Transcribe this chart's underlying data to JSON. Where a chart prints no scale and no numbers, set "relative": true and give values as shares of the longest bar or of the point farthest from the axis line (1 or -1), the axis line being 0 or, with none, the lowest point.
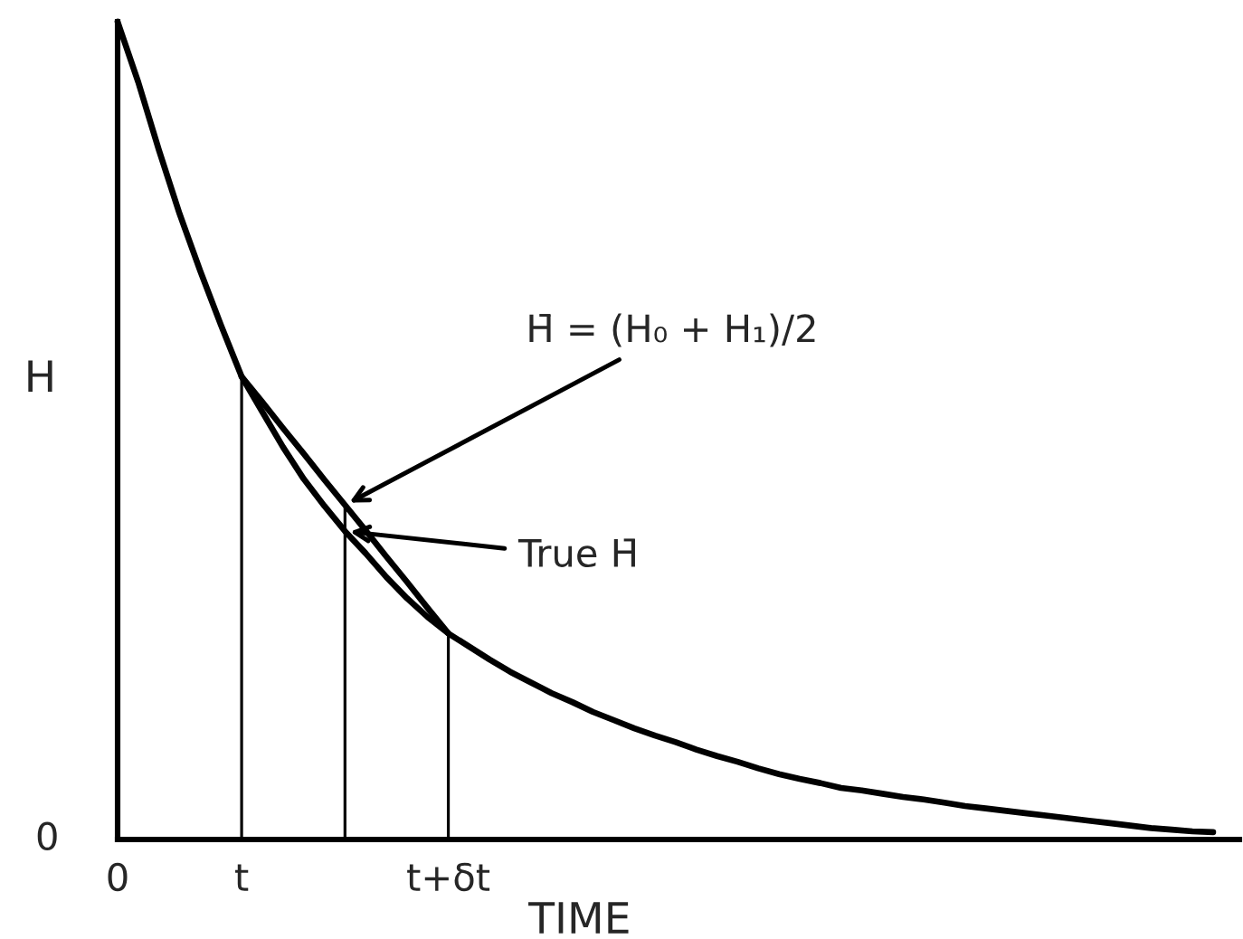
{
  "chart_data": {
    "type": "line",
    "relative": true,
    "xlabel": "TIME",
    "ylabel": "H",
    "categories": [
      "0",
      null,
      null,
      null,
      null,
      null,
      "t",
      null,
      null,
      null,
      null,
      null,
      null,
      null,
      null,
      null,
      "t+δt",
      null,
      null,
      null,
      null,
      null,
      null,
      null,
      null,
      null,
      null,
      null,
      null,
      null,
      null,
      null,
      null,
      null,
      null,
      null,
      null,
      null,
      null,
      null,
      null,
      null,
      null,
      null,
      null,
      null,
      null,
      null,
      null,
      null,
      null,
      null,
      null,
      null
    ],
    "series": [
      {
        "color": "#000000",
        "values": [
          1.0,
          0.926,
          0.843,
          0.765,
          0.695,
          0.629,
          0.566,
          0.523,
          0.48,
          0.441,
          0.408,
          0.377,
          0.35,
          0.321,
          0.295,
          0.272,
          0.252,
          0.236,
          0.22,
          0.205,
          0.192,
          0.179,
          0.168,
          0.156,
          0.146,
          0.136,
          0.127,
          0.119,
          0.11,
          0.102,
          0.095,
          0.087,
          0.08,
          0.074,
          0.069,
          0.063,
          0.06,
          0.056,
          0.052,
          0.049,
          0.045,
          0.041,
          0.038,
          0.035,
          0.032,
          0.029,
          0.026,
          0.023,
          0.02,
          0.017,
          0.014,
          0.012,
          0.01,
          0.009
        ]
      },
      {
        "color": "#000000",
        "values": [
          null,
          null,
          null,
          null,
          null,
          null,
          0.566,
          0.535,
          0.503,
          0.472,
          0.44,
          0.409,
          0.378,
          0.346,
          0.315,
          0.283,
          0.252,
          null,
          null,
          null,
          null,
          null,
          null,
          null,
          null,
          null,
          null,
          null,
          null,
          null,
          null,
          null,
          null,
          null,
          null,
          null,
          null,
          null,
          null,
          null,
          null,
          null,
          null,
          null,
          null,
          null,
          null,
          null,
          null,
          null,
          null,
          null,
          null,
          null
        ]
      },
      {
        "type": "bar",
        "color": "#000000",
        "values": [
          null,
          null,
          null,
          null,
          null,
          null,
          0.566,
          null,
          null,
          null,
          null,
          0.409,
          null,
          null,
          null,
          null,
          0.252,
          null,
          null,
          null,
          null,
          null,
          null,
          null,
          null,
          null,
          null,
          null,
          null,
          null,
          null,
          null,
          null,
          null,
          null,
          null,
          null,
          null,
          null,
          null,
          null,
          null,
          null,
          null,
          null,
          null,
          null,
          null,
          null,
          null,
          null,
          null,
          null,
          null
        ]
      }
    ],
    "annotations": [
      "0",
      "H̄ = (H₀ + H₁)/2",
      "True H̄"
    ]
  }
}
